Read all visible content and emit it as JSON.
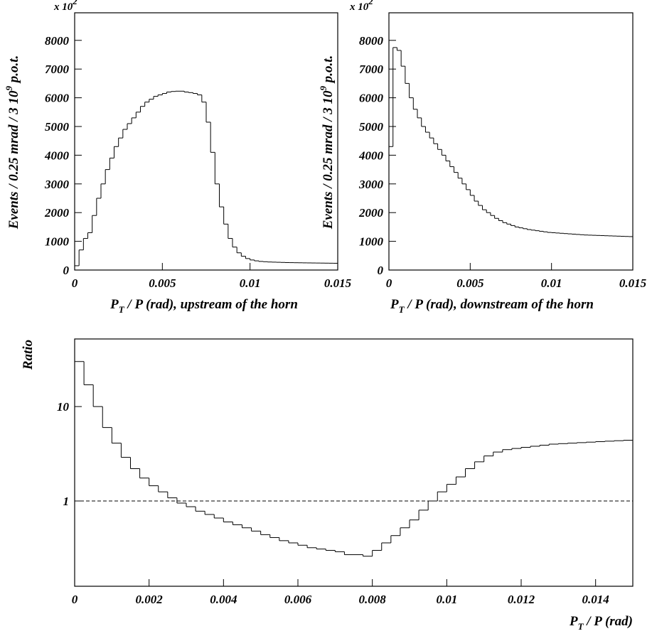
{
  "chart_data": [
    {
      "type": "histogram",
      "color": "#000000",
      "bins": [
        0,
        0.00025,
        0.0005,
        0.00075,
        0.001,
        0.00125,
        0.0015,
        0.00175,
        0.002,
        0.00225,
        0.0025,
        0.00275,
        0.003,
        0.00325,
        0.0035,
        0.00375,
        0.004,
        0.00425,
        0.0045,
        0.00475,
        0.005,
        0.00525,
        0.0055,
        0.00575,
        0.006,
        0.00625,
        0.0065,
        0.00675,
        0.007,
        0.00725,
        0.0075,
        0.00775,
        0.008,
        0.00825,
        0.0085,
        0.00875,
        0.009,
        0.00925,
        0.0095,
        0.00975,
        0.01,
        0.01025,
        0.0105,
        0.01075,
        0.011,
        0.01125,
        0.0115,
        0.01175,
        0.012,
        0.01225,
        0.0125,
        0.01275,
        0.013,
        0.01325,
        0.0135,
        0.01375,
        0.014,
        0.01425,
        0.0145,
        0.01475,
        0.015
      ],
      "values": [
        150,
        700,
        1100,
        1300,
        1900,
        2500,
        3000,
        3500,
        3900,
        4300,
        4600,
        4900,
        5100,
        5300,
        5500,
        5700,
        5850,
        5950,
        6050,
        6100,
        6150,
        6200,
        6220,
        6230,
        6230,
        6200,
        6180,
        6150,
        6100,
        5850,
        5150,
        4100,
        3000,
        2200,
        1600,
        1100,
        800,
        600,
        480,
        400,
        350,
        320,
        300,
        290,
        280,
        275,
        270,
        265,
        260,
        258,
        255,
        253,
        250,
        248,
        246,
        244,
        242,
        240,
        238,
        236
      ],
      "xlim": [
        0,
        0.015
      ],
      "ylim": [
        0,
        8960
      ],
      "xticks": [
        0,
        0.005,
        0.01,
        0.015
      ],
      "yticks": [
        0,
        1000,
        2000,
        3000,
        4000,
        5000,
        6000,
        7000,
        8000
      ],
      "y_multiplier": {
        "base": "x 10",
        "sup": "2"
      },
      "y_label": {
        "base": "Events / 0.25 mrad / 3 10",
        "sup": "9",
        "rest": " p.o.t."
      },
      "x_label": {
        "base": "P",
        "sub": "T",
        "rest": " / P (rad), upstream of the horn"
      }
    },
    {
      "type": "histogram",
      "color": "#000000",
      "bins": [
        0,
        0.00025,
        0.0005,
        0.00075,
        0.001,
        0.00125,
        0.0015,
        0.00175,
        0.002,
        0.00225,
        0.0025,
        0.00275,
        0.003,
        0.00325,
        0.0035,
        0.00375,
        0.004,
        0.00425,
        0.0045,
        0.00475,
        0.005,
        0.00525,
        0.0055,
        0.00575,
        0.006,
        0.00625,
        0.0065,
        0.00675,
        0.007,
        0.00725,
        0.0075,
        0.00775,
        0.008,
        0.00825,
        0.0085,
        0.00875,
        0.009,
        0.00925,
        0.0095,
        0.00975,
        0.01,
        0.01025,
        0.0105,
        0.01075,
        0.011,
        0.01125,
        0.0115,
        0.01175,
        0.012,
        0.01225,
        0.0125,
        0.01275,
        0.013,
        0.01325,
        0.0135,
        0.01375,
        0.014,
        0.01425,
        0.0145,
        0.01475,
        0.015
      ],
      "values": [
        4300,
        7750,
        7650,
        7100,
        6500,
        6000,
        5600,
        5300,
        5000,
        4800,
        4600,
        4400,
        4200,
        4000,
        3800,
        3600,
        3400,
        3200,
        3000,
        2800,
        2600,
        2400,
        2250,
        2100,
        2000,
        1900,
        1800,
        1720,
        1650,
        1600,
        1550,
        1500,
        1470,
        1440,
        1410,
        1390,
        1370,
        1350,
        1330,
        1310,
        1300,
        1290,
        1280,
        1270,
        1260,
        1250,
        1240,
        1230,
        1220,
        1215,
        1210,
        1205,
        1200,
        1195,
        1190,
        1185,
        1180,
        1175,
        1170,
        1165
      ],
      "xlim": [
        0,
        0.015
      ],
      "ylim": [
        0,
        8960
      ],
      "xticks": [
        0,
        0.005,
        0.01,
        0.015
      ],
      "yticks": [
        0,
        1000,
        2000,
        3000,
        4000,
        5000,
        6000,
        7000,
        8000
      ],
      "y_multiplier": {
        "base": "x 10",
        "sup": "2"
      },
      "y_label": {
        "base": "Events / 0.25 mrad / 3 10",
        "sup": "9",
        "rest": " p.o.t."
      },
      "x_label": {
        "base": "P",
        "sub": "T",
        "rest": " / P (rad), downstream of the horn"
      }
    },
    {
      "type": "histogram",
      "color": "#000000",
      "yscale": "log",
      "bins": [
        0,
        0.00025,
        0.0005,
        0.00075,
        0.001,
        0.00125,
        0.0015,
        0.00175,
        0.002,
        0.00225,
        0.0025,
        0.00275,
        0.003,
        0.00325,
        0.0035,
        0.00375,
        0.004,
        0.00425,
        0.0045,
        0.00475,
        0.005,
        0.00525,
        0.0055,
        0.00575,
        0.006,
        0.00625,
        0.0065,
        0.00675,
        0.007,
        0.00725,
        0.0075,
        0.00775,
        0.008,
        0.00825,
        0.0085,
        0.00875,
        0.009,
        0.00925,
        0.0095,
        0.00975,
        0.01,
        0.01025,
        0.0105,
        0.01075,
        0.011,
        0.01125,
        0.0115,
        0.01175,
        0.012,
        0.01225,
        0.0125,
        0.01275,
        0.013,
        0.01325,
        0.0135,
        0.01375,
        0.014,
        0.01425,
        0.0145,
        0.01475,
        0.015
      ],
      "values": [
        30,
        17,
        10,
        6,
        4.1,
        2.9,
        2.2,
        1.75,
        1.45,
        1.25,
        1.08,
        0.95,
        0.87,
        0.78,
        0.72,
        0.66,
        0.6,
        0.56,
        0.52,
        0.48,
        0.44,
        0.41,
        0.38,
        0.36,
        0.34,
        0.32,
        0.31,
        0.3,
        0.29,
        0.27,
        0.27,
        0.26,
        0.3,
        0.36,
        0.43,
        0.52,
        0.63,
        0.8,
        1.0,
        1.25,
        1.5,
        1.8,
        2.2,
        2.6,
        3.0,
        3.3,
        3.5,
        3.6,
        3.7,
        3.8,
        3.9,
        4.0,
        4.05,
        4.1,
        4.15,
        4.2,
        4.25,
        4.3,
        4.35,
        4.4
      ],
      "xlim": [
        0,
        0.015
      ],
      "ylim": [
        0.125,
        52
      ],
      "xticks": [
        0,
        0.002,
        0.004,
        0.006,
        0.008,
        0.01,
        0.012,
        0.014
      ],
      "yticks": [
        1,
        10
      ],
      "reference_line": 1,
      "reference_line_style": "dashed",
      "y_label": {
        "base": "Ratio"
      },
      "x_label": {
        "base": "P",
        "sub": "T",
        "rest": " / P (rad)"
      }
    }
  ]
}
